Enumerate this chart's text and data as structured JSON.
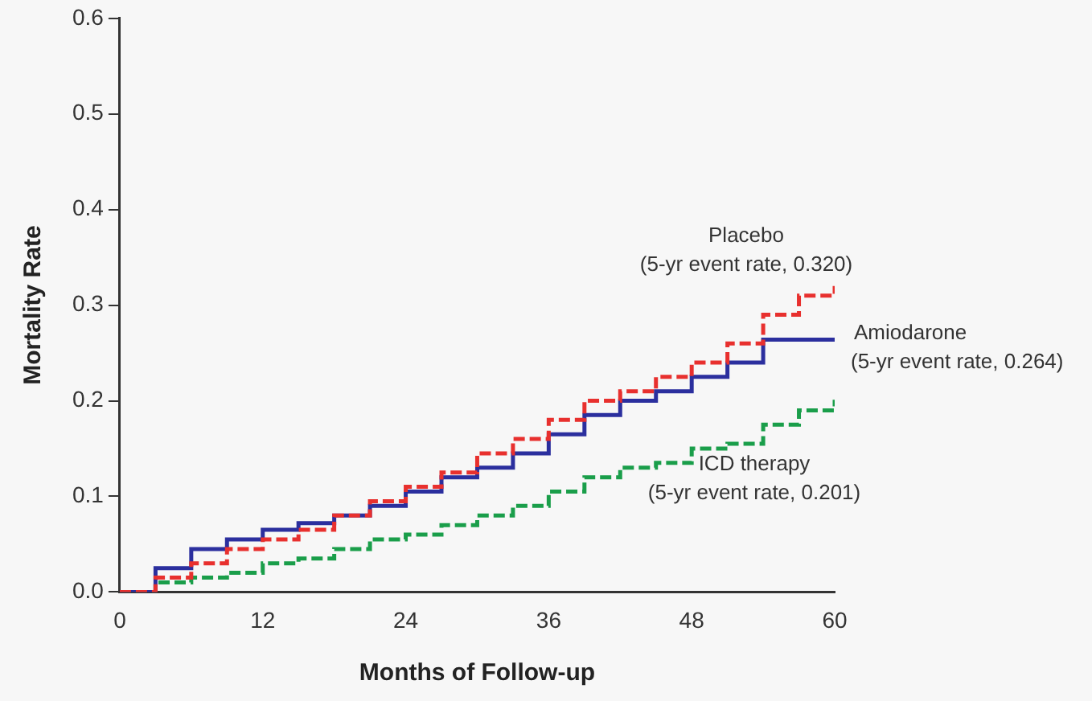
{
  "chart_data": {
    "type": "step",
    "xlabel": "Months of Follow-up",
    "ylabel": "Mortality Rate",
    "xlim": [
      0,
      60
    ],
    "xticks": [
      0,
      12,
      24,
      36,
      48,
      60
    ],
    "ylim": [
      0,
      0.6
    ],
    "yticks": [
      {
        "value": 0,
        "label": "0.0"
      },
      0.1,
      0.2,
      0.3,
      0.4,
      0.5,
      0.6
    ],
    "grid": false,
    "legend": false,
    "marker": "none",
    "x": [
      0,
      3,
      6,
      9,
      12,
      15,
      18,
      21,
      24,
      27,
      30,
      33,
      36,
      39,
      42,
      45,
      48,
      51,
      54,
      57,
      60
    ],
    "series": [
      {
        "name": "Placebo",
        "color": "#e8302e",
        "line_style": "dashed",
        "values": [
          0,
          0.015,
          0.03,
          0.045,
          0.055,
          0.065,
          0.08,
          0.095,
          0.11,
          0.125,
          0.145,
          0.16,
          0.18,
          0.2,
          0.21,
          0.225,
          0.24,
          0.26,
          0.29,
          0.31,
          0.32
        ]
      },
      {
        "name": "Amiodarone",
        "color": "#2b2f9e",
        "line_style": "solid",
        "values": [
          0,
          0.025,
          0.045,
          0.055,
          0.065,
          0.072,
          0.08,
          0.09,
          0.105,
          0.12,
          0.13,
          0.145,
          0.165,
          0.185,
          0.2,
          0.21,
          0.225,
          0.24,
          0.264,
          0.264,
          0.264
        ]
      },
      {
        "name": "ICD therapy",
        "color": "#1a9e4a",
        "line_style": "dashed",
        "values": [
          0,
          0.01,
          0.015,
          0.02,
          0.03,
          0.035,
          0.045,
          0.055,
          0.06,
          0.07,
          0.08,
          0.09,
          0.105,
          0.12,
          0.13,
          0.135,
          0.15,
          0.155,
          0.175,
          0.19,
          0.201
        ]
      }
    ],
    "annotations": [
      "(5-yr event rate, 0.320)",
      "(5-yr event rate, 0.264)",
      "(5-yr event rate, 0.201)"
    ]
  }
}
